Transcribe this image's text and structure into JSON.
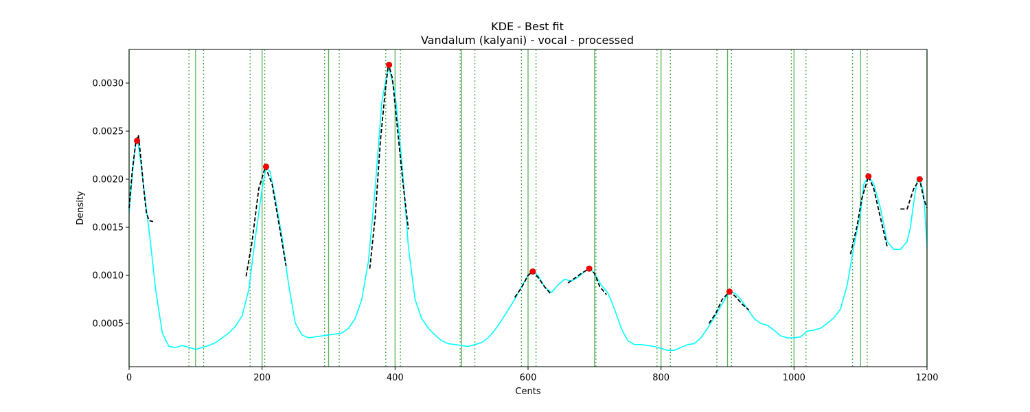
{
  "chart_data": {
    "type": "line",
    "title": "KDE - Best fit",
    "subtitle": "Vandalum (kalyani) - vocal - processed",
    "xlabel": "Cents",
    "ylabel": "Density",
    "xlim": [
      0,
      1200
    ],
    "ylim": [
      5e-05,
      0.00335
    ],
    "x_ticks": [
      0,
      200,
      400,
      600,
      800,
      1000,
      1200
    ],
    "x_tick_labels": [
      "0",
      "200",
      "400",
      "600",
      "800",
      "1000",
      "1200"
    ],
    "y_ticks": [
      0.0005,
      0.001,
      0.0015,
      0.002,
      0.0025,
      0.003
    ],
    "y_tick_labels": [
      "0.0005",
      "0.0010",
      "0.0015",
      "0.0020",
      "0.0025",
      "0.0030"
    ],
    "grid": false,
    "colors": {
      "kde": "#00ffff",
      "fit": "#000000",
      "peak": "#ff0000",
      "swara_line": "#2ca02c"
    },
    "reference_lines": {
      "solid": [
        0,
        100,
        200,
        300,
        400,
        500,
        600,
        700,
        800,
        900,
        1000,
        1100,
        1200
      ],
      "dotted": [
        90,
        112,
        182,
        204,
        294,
        316,
        386,
        408,
        498,
        520,
        590,
        612,
        702,
        794,
        814,
        884,
        906,
        996,
        1018,
        1088,
        1110
      ]
    },
    "kde_series": {
      "x": [
        0,
        5,
        10,
        13,
        18,
        25,
        32,
        40,
        50,
        60,
        70,
        80,
        90,
        100,
        110,
        120,
        130,
        140,
        150,
        160,
        170,
        180,
        190,
        200,
        206,
        212,
        220,
        230,
        240,
        250,
        260,
        270,
        280,
        290,
        300,
        310,
        320,
        330,
        340,
        350,
        360,
        370,
        380,
        390,
        400,
        410,
        420,
        430,
        440,
        450,
        460,
        470,
        480,
        490,
        500,
        510,
        520,
        530,
        540,
        550,
        560,
        570,
        580,
        590,
        600,
        607,
        615,
        625,
        635,
        645,
        655,
        665,
        675,
        685,
        693,
        700,
        710,
        720,
        730,
        740,
        750,
        760,
        770,
        780,
        790,
        800,
        810,
        820,
        830,
        840,
        850,
        860,
        870,
        880,
        890,
        900,
        905,
        912,
        920,
        930,
        940,
        950,
        960,
        970,
        980,
        990,
        1000,
        1010,
        1020,
        1030,
        1040,
        1050,
        1060,
        1070,
        1080,
        1090,
        1100,
        1105,
        1112,
        1120,
        1130,
        1140,
        1150,
        1160,
        1170,
        1175,
        1180,
        1185,
        1190,
        1195,
        1200
      ],
      "y": [
        0.00165,
        0.00205,
        0.00238,
        0.0024,
        0.00215,
        0.00175,
        0.00135,
        0.00085,
        0.0004,
        0.00026,
        0.00025,
        0.00027,
        0.00025,
        0.00023,
        0.00025,
        0.00027,
        0.0003,
        0.00035,
        0.0004,
        0.00047,
        0.00058,
        0.00085,
        0.0014,
        0.0019,
        0.00212,
        0.00208,
        0.0018,
        0.0014,
        0.0009,
        0.0005,
        0.00038,
        0.00035,
        0.00036,
        0.00037,
        0.00038,
        0.00039,
        0.0004,
        0.00045,
        0.00055,
        0.00075,
        0.00115,
        0.0019,
        0.0028,
        0.00318,
        0.0029,
        0.0022,
        0.0013,
        0.00075,
        0.00055,
        0.00045,
        0.00038,
        0.00032,
        0.00029,
        0.00028,
        0.00027,
        0.00026,
        0.00028,
        0.0003,
        0.00035,
        0.00043,
        0.00053,
        0.00064,
        0.00075,
        0.00088,
        0.001,
        0.00104,
        0.001,
        0.00088,
        0.00082,
        0.0009,
        0.00096,
        0.00094,
        0.00098,
        0.00104,
        0.00107,
        0.00102,
        0.0009,
        0.00082,
        0.00065,
        0.00045,
        0.00032,
        0.00028,
        0.00028,
        0.00027,
        0.00026,
        0.00024,
        0.00022,
        0.00022,
        0.00025,
        0.00028,
        0.00029,
        0.00035,
        0.00045,
        0.00056,
        0.00068,
        0.0008,
        0.00083,
        0.00081,
        0.00075,
        0.00065,
        0.00055,
        0.0005,
        0.00048,
        0.00043,
        0.00037,
        0.00035,
        0.00035,
        0.00036,
        0.00042,
        0.00043,
        0.00045,
        0.0005,
        0.00056,
        0.00065,
        0.0009,
        0.0013,
        0.00165,
        0.00195,
        0.00203,
        0.00195,
        0.0017,
        0.00135,
        0.00127,
        0.00127,
        0.00135,
        0.0015,
        0.00175,
        0.00198,
        0.00199,
        0.00185,
        0.0013
      ]
    },
    "fit_segments": [
      {
        "x": [
          0,
          5,
          10,
          14,
          18,
          22,
          26,
          30,
          36
        ],
        "y": [
          0.0017,
          0.0021,
          0.00238,
          0.00246,
          0.0022,
          0.0019,
          0.00165,
          0.00157,
          0.00156
        ]
      },
      {
        "x": [
          176,
          185,
          195,
          205,
          215,
          225,
          236
        ],
        "y": [
          0.00099,
          0.00135,
          0.0019,
          0.00213,
          0.00195,
          0.00155,
          0.0011
        ]
      },
      {
        "x": [
          362,
          370,
          378,
          385,
          390,
          396,
          404,
          412,
          420
        ],
        "y": [
          0.00107,
          0.0016,
          0.0024,
          0.0029,
          0.0032,
          0.00305,
          0.0025,
          0.00195,
          0.00148
        ]
      },
      {
        "x": [
          580,
          590,
          600,
          607,
          615,
          625,
          635
        ],
        "y": [
          0.00077,
          0.00087,
          0.001,
          0.00104,
          0.00098,
          0.00088,
          0.0008
        ]
      },
      {
        "x": [
          660,
          670,
          680,
          692,
          700,
          708,
          718
        ],
        "y": [
          0.00092,
          0.00097,
          0.00102,
          0.00107,
          0.00102,
          0.00088,
          0.0008
        ]
      },
      {
        "x": [
          872,
          882,
          892,
          903,
          912,
          922,
          932
        ],
        "y": [
          0.0005,
          0.0006,
          0.00075,
          0.00083,
          0.00078,
          0.0007,
          0.00064
        ]
      },
      {
        "x": [
          1085,
          1095,
          1102,
          1112,
          1120,
          1130,
          1140
        ],
        "y": [
          0.00122,
          0.00152,
          0.0018,
          0.00203,
          0.0019,
          0.0016,
          0.0013
        ]
      },
      {
        "x": [
          1160,
          1170,
          1180,
          1189,
          1195,
          1200
        ],
        "y": [
          0.00169,
          0.00169,
          0.0019,
          0.002,
          0.0018,
          0.0017
        ]
      }
    ],
    "peaks": {
      "x": [
        12,
        206,
        391,
        607,
        692,
        903,
        1112,
        1189
      ],
      "y": [
        0.0024,
        0.00213,
        0.00319,
        0.00104,
        0.00107,
        0.00083,
        0.00203,
        0.002
      ]
    }
  }
}
